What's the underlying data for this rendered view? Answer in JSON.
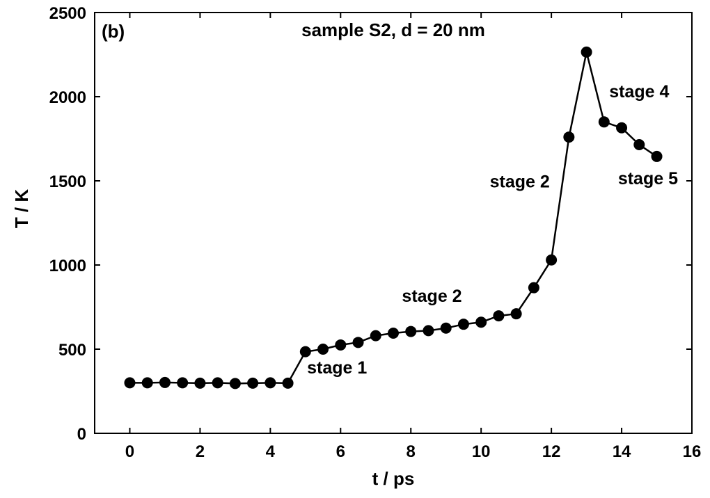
{
  "chart_data": {
    "type": "line",
    "panel_label": "(b)",
    "title": "sample S2, d = 20 nm",
    "xlabel": "t / ps",
    "ylabel": "T / K",
    "xlim": [
      -1,
      16
    ],
    "ylim": [
      0,
      2500
    ],
    "xticks": [
      0,
      2,
      4,
      6,
      8,
      10,
      12,
      14,
      16
    ],
    "yticks": [
      0,
      500,
      1000,
      1500,
      2000,
      2500
    ],
    "grid": false,
    "marker": "filled-circle",
    "series": [
      {
        "x": [
          0,
          0.5,
          1,
          1.5,
          2,
          2.5,
          3,
          3.5,
          4,
          4.5,
          5,
          5.5,
          6,
          6.5,
          7,
          7.5,
          8,
          8.5,
          9,
          9.5,
          10,
          10.5,
          11,
          11.5,
          12,
          12.5,
          13,
          13.5,
          14,
          14.5,
          15
        ],
        "y": [
          300,
          300,
          302,
          300,
          298,
          300,
          296,
          298,
          300,
          298,
          485,
          500,
          525,
          540,
          580,
          595,
          605,
          610,
          625,
          648,
          660,
          698,
          710,
          865,
          1030,
          1760,
          2265,
          1850,
          1815,
          1715,
          1645
        ]
      }
    ],
    "annotations": [
      {
        "text": "stage 1",
        "x": 5.9,
        "y": 355
      },
      {
        "text": "stage 2",
        "x": 8.6,
        "y": 780
      },
      {
        "text": "stage 2",
        "x": 11.1,
        "y": 1460
      },
      {
        "text": "stage 4",
        "x": 14.5,
        "y": 1995
      },
      {
        "text": "stage 5",
        "x": 14.75,
        "y": 1480
      }
    ]
  }
}
